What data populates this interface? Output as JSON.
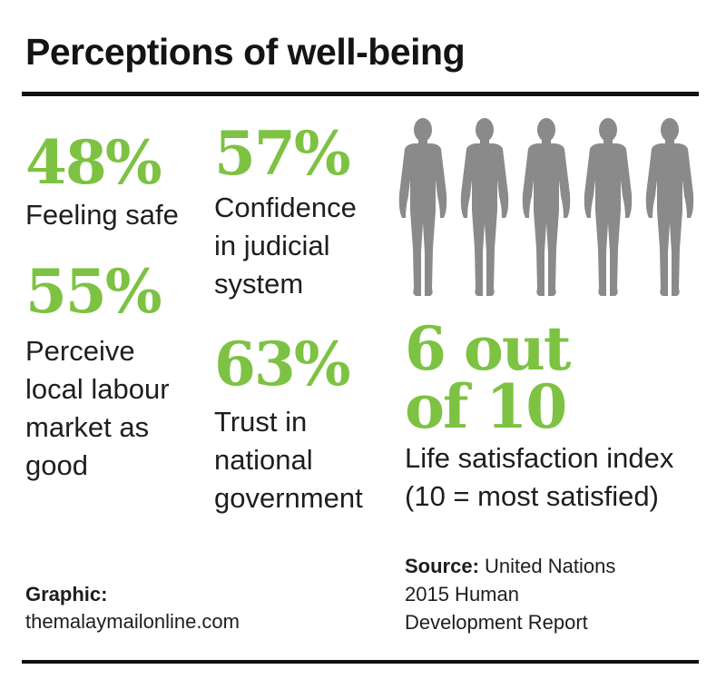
{
  "title": "Perceptions of well-being",
  "stats": [
    {
      "value": "48%",
      "label": "Feeling safe"
    },
    {
      "value": "57%",
      "label_lines": [
        "Confidence",
        "in judicial",
        "system"
      ]
    },
    {
      "value": "55%",
      "label_lines": [
        "Perceive",
        "local labour",
        "market as",
        "good"
      ]
    },
    {
      "value": "63%",
      "label_lines": [
        "Trust in",
        "national",
        "government"
      ]
    }
  ],
  "life_satisfaction": {
    "value_lines": [
      "6 out",
      "of 10"
    ],
    "label": "Life satisfaction index",
    "note": "(10 = most satisfied)",
    "figures_count": 5,
    "figure_icon": "person-silhouette-icon",
    "figure_color": "#8a8a8a"
  },
  "credit": {
    "label": "Graphic:",
    "value": "themalaymailonline.com"
  },
  "source": {
    "label": "Source:",
    "lines": [
      "United Nations",
      "2015 Human",
      "Development Report"
    ]
  },
  "colors": {
    "accent": "#7dc242",
    "rule": "#111111",
    "text": "#1e1e1e"
  }
}
